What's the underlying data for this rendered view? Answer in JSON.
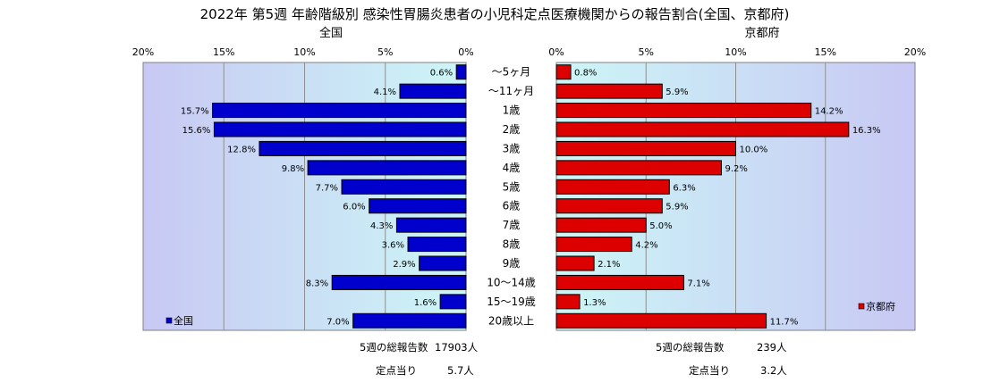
{
  "chart_data": {
    "type": "bar",
    "title": "2022年 第5週  年齢階級別 感染性胃腸炎患者の小児科定点医療機関からの報告割合(全国、京都府)",
    "categories": [
      "～5ヶ月",
      "～11ヶ月",
      "1歳",
      "2歳",
      "3歳",
      "4歳",
      "5歳",
      "6歳",
      "7歳",
      "8歳",
      "9歳",
      "10～14歳",
      "15～19歳",
      "20歳以上"
    ],
    "xlim": [
      0,
      20
    ],
    "tick_labels": [
      "0%",
      "5%",
      "10%",
      "15%",
      "20%"
    ],
    "grid": true,
    "series": [
      {
        "name": "全国",
        "side_title": "全国",
        "color": "#0000cc",
        "values": [
          0.6,
          4.1,
          15.7,
          15.6,
          12.8,
          9.8,
          7.7,
          6.0,
          4.3,
          3.6,
          2.9,
          8.3,
          1.6,
          7.0
        ],
        "labels": [
          "0.6%",
          "4.1%",
          "15.7%",
          "15.6%",
          "12.8%",
          "9.8%",
          "7.7%",
          "6.0%",
          "4.3%",
          "3.6%",
          "2.9%",
          "8.3%",
          "1.6%",
          "7.0%"
        ],
        "legend": "全国",
        "legend_position": "bottom-left"
      },
      {
        "name": "京都府",
        "side_title": "京都府",
        "color": "#dd0000",
        "values": [
          0.8,
          5.9,
          14.2,
          16.3,
          10.0,
          9.2,
          6.3,
          5.9,
          5.0,
          4.2,
          2.1,
          7.1,
          1.3,
          11.7
        ],
        "labels": [
          "0.8%",
          "5.9%",
          "14.2%",
          "16.3%",
          "10.0%",
          "9.2%",
          "6.3%",
          "5.9%",
          "5.0%",
          "4.2%",
          "2.1%",
          "7.1%",
          "1.3%",
          "11.7%"
        ],
        "legend": "京都府",
        "legend_position": "bottom-right"
      }
    ]
  },
  "summary": {
    "national": {
      "total_label": "5週の総報告数",
      "total_value": "17903人",
      "per_label": "定点当り",
      "per_value": "5.7人"
    },
    "kyoto": {
      "total_label": "5週の総報告数",
      "total_value": "239人",
      "per_label": "定点当り",
      "per_value": "3.2人"
    }
  }
}
